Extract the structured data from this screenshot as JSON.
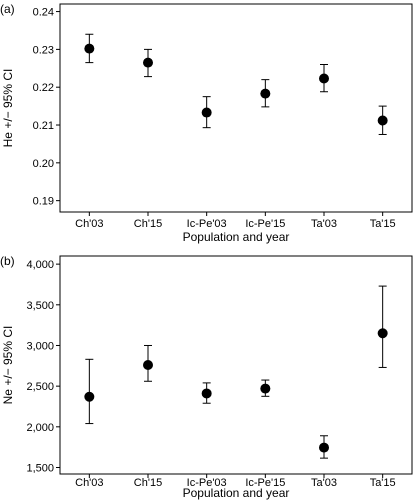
{
  "chart_data": [
    {
      "type": "scatter",
      "panel_label": "(a)",
      "categories": [
        "Ch'03",
        "Ch'15",
        "Ic-Pe'03",
        "Ic-Pe'15",
        "Ta'03",
        "Ta'15"
      ],
      "values": [
        0.2302,
        0.2265,
        0.2133,
        0.2183,
        0.2223,
        0.2112
      ],
      "ci_low": [
        0.2265,
        0.2228,
        0.2093,
        0.2148,
        0.2188,
        0.2075
      ],
      "ci_high": [
        0.234,
        0.23,
        0.2175,
        0.222,
        0.226,
        0.215
      ],
      "xlabel": "Population and year",
      "ylabel": "He +/− 95% CI",
      "ylim": [
        0.187,
        0.242
      ],
      "yticks": [
        0.19,
        0.2,
        0.21,
        0.22,
        0.23,
        0.24
      ],
      "ytick_labels": [
        "0.19",
        "0.20",
        "0.21",
        "0.22",
        "0.23",
        "0.24"
      ],
      "grid": false
    },
    {
      "type": "scatter",
      "panel_label": "(b)",
      "categories": [
        "Ch'03",
        "Ch'15",
        "Ic-Pe'03",
        "Ic-Pe'15",
        "Ta'03",
        "Ta'15"
      ],
      "values": [
        2370,
        2760,
        2410,
        2470,
        1745,
        3150
      ],
      "ci_low": [
        2040,
        2560,
        2290,
        2375,
        1615,
        2730
      ],
      "ci_high": [
        2830,
        3000,
        2540,
        2575,
        1890,
        3730
      ],
      "xlabel": "Population and year",
      "ylabel": "Ne +/− 95% CI",
      "ylim": [
        1420,
        4100
      ],
      "yticks": [
        1500,
        2000,
        2500,
        3000,
        3500,
        4000
      ],
      "ytick_labels": [
        "1,500",
        "2,000",
        "2,500",
        "3,000",
        "3,500",
        "4,000"
      ],
      "grid": false
    }
  ]
}
